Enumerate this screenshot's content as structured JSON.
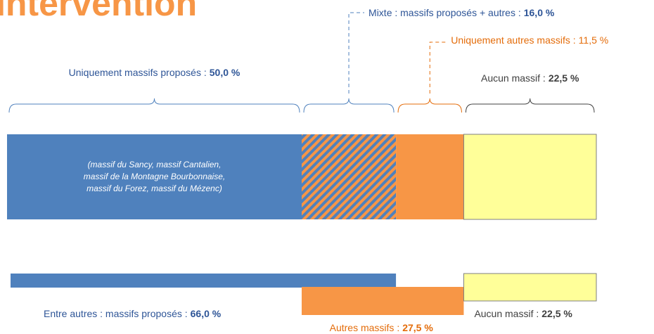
{
  "title": "Intervention",
  "chart_data": {
    "type": "stacked_bar",
    "xlim": [
      0,
      100
    ],
    "bars": [
      {
        "segments": [
          {
            "name": "Uniquement massifs proposés :",
            "value": 50.0,
            "value_label": "50,0 %",
            "color": "#4f81bd",
            "note": [
              "(massif du Sancy, massif Cantalien,",
              "massif de la Montagne Bourbonnaise,",
              "massif du Forez, massif du Mézenc)"
            ]
          },
          {
            "name": "Mixte : massifs proposés + autres :",
            "value": 16.0,
            "value_label": "16,0 %",
            "color": "#4f81bd",
            "color2": "#f79646"
          },
          {
            "name": "Uniquement autres massifs :",
            "value": 11.5,
            "value_label": "11,5 %",
            "color": "#f79646"
          },
          {
            "name": "Aucun massif :",
            "value": 22.5,
            "value_label": "22,5 %",
            "color": "#ffff99"
          }
        ]
      },
      {
        "segments": [
          {
            "name": "Entre autres : massifs proposés :",
            "value": 66.0,
            "value_label": "66,0 %",
            "color": "#4f81bd"
          },
          {
            "name": "Autres massifs :",
            "value": 27.5,
            "value_label": "27,5 %",
            "color": "#f79646"
          },
          {
            "name": "Aucun massif :",
            "value": 22.5,
            "value_label": "22,5 %",
            "color": "#ffff99"
          }
        ]
      }
    ]
  }
}
